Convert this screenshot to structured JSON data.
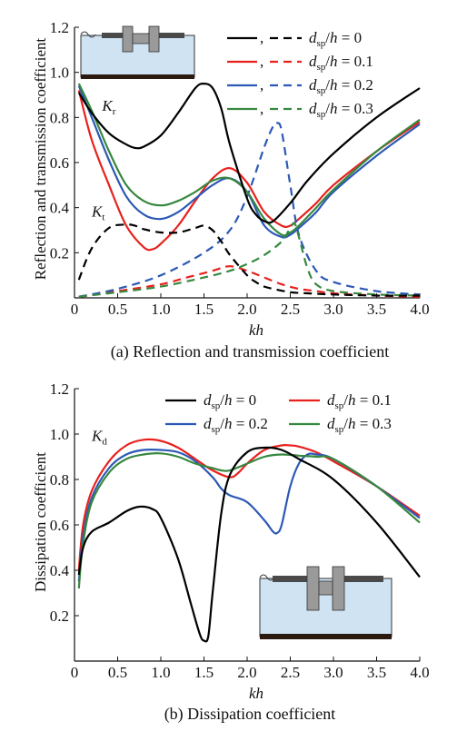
{
  "chart_data": [
    {
      "type": "line",
      "caption": "(a) Reflection and transmission coefficient",
      "xlabel": "kh",
      "ylabel": "Reflection and transmission coefficient",
      "xlim": [
        0,
        4.0
      ],
      "ylim": [
        0,
        1.2
      ],
      "xticks": [
        "0",
        "0.5",
        "1.0",
        "1.5",
        "2.0",
        "2.5",
        "3.0",
        "3.5",
        "4.0"
      ],
      "yticks": [
        "0.2",
        "0.4",
        "0.6",
        "0.8",
        "1.0",
        "1.2"
      ],
      "legend_position": "top-right",
      "annotations": [
        {
          "base": "K",
          "sub": "r",
          "x": 0.32,
          "y": 0.83
        },
        {
          "base": "K",
          "sub": "t",
          "x": 0.2,
          "y": 0.36
        }
      ],
      "series": [
        {
          "name_base": "d",
          "name_sub": "sp",
          "name_rest": "/h = 0",
          "color": "#000000",
          "x": [
            0.05,
            0.2,
            0.4,
            0.6,
            0.7,
            0.8,
            1.0,
            1.2,
            1.4,
            1.5,
            1.6,
            1.7,
            1.8,
            2.0,
            2.1,
            2.2,
            2.3,
            2.5,
            2.7,
            3.0,
            3.5,
            4.0
          ],
          "kr": [
            0.91,
            0.82,
            0.73,
            0.68,
            0.665,
            0.67,
            0.72,
            0.82,
            0.93,
            0.95,
            0.93,
            0.84,
            0.68,
            0.44,
            0.37,
            0.34,
            0.34,
            0.42,
            0.52,
            0.64,
            0.8,
            0.93
          ],
          "kt": [
            0.08,
            0.22,
            0.31,
            0.325,
            0.32,
            0.305,
            0.29,
            0.29,
            0.31,
            0.32,
            0.3,
            0.25,
            0.19,
            0.1,
            0.07,
            0.05,
            0.04,
            0.025,
            0.02,
            0.015,
            0.01,
            0.01
          ]
        },
        {
          "name_base": "d",
          "name_sub": "sp",
          "name_rest": "/h = 0.1",
          "color": "#e8211d",
          "x": [
            0.05,
            0.2,
            0.4,
            0.6,
            0.8,
            0.9,
            1.0,
            1.2,
            1.4,
            1.6,
            1.8,
            2.0,
            2.2,
            2.4,
            2.5,
            2.6,
            2.8,
            3.0,
            3.5,
            4.0
          ],
          "kr": [
            0.92,
            0.7,
            0.5,
            0.32,
            0.225,
            0.215,
            0.24,
            0.32,
            0.43,
            0.53,
            0.575,
            0.51,
            0.38,
            0.32,
            0.32,
            0.35,
            0.42,
            0.5,
            0.65,
            0.78
          ],
          "kt_x": [
            0.05,
            0.5,
            1.0,
            1.3,
            1.6,
            1.8,
            2.0,
            2.2,
            2.4,
            2.6,
            2.8,
            3.0,
            3.5,
            4.0
          ],
          "kt": [
            0.005,
            0.03,
            0.06,
            0.09,
            0.12,
            0.14,
            0.12,
            0.09,
            0.06,
            0.04,
            0.03,
            0.02,
            0.01,
            0.005
          ]
        },
        {
          "name_base": "d",
          "name_sub": "sp",
          "name_rest": "/h = 0.2",
          "color": "#2c59b5",
          "x": [
            0.05,
            0.2,
            0.4,
            0.6,
            0.8,
            1.0,
            1.2,
            1.4,
            1.6,
            1.8,
            2.0,
            2.2,
            2.4,
            2.5,
            2.6,
            2.8,
            3.0,
            3.5,
            4.0
          ],
          "kr": [
            0.94,
            0.8,
            0.61,
            0.45,
            0.37,
            0.35,
            0.38,
            0.44,
            0.5,
            0.53,
            0.47,
            0.32,
            0.27,
            0.28,
            0.31,
            0.38,
            0.47,
            0.63,
            0.77
          ],
          "kt_x": [
            0.05,
            0.5,
            1.0,
            1.5,
            1.8,
            2.0,
            2.2,
            2.3,
            2.35,
            2.4,
            2.5,
            2.6,
            2.8,
            3.0,
            3.5,
            4.0
          ],
          "kt": [
            0.005,
            0.04,
            0.1,
            0.2,
            0.3,
            0.45,
            0.67,
            0.76,
            0.775,
            0.74,
            0.5,
            0.28,
            0.12,
            0.07,
            0.03,
            0.015
          ]
        },
        {
          "name_base": "d",
          "name_sub": "sp",
          "name_rest": "/h = 0.3",
          "color": "#37883f",
          "x": [
            0.05,
            0.2,
            0.4,
            0.6,
            0.8,
            1.0,
            1.2,
            1.4,
            1.6,
            1.8,
            2.0,
            2.2,
            2.4,
            2.5,
            2.6,
            2.8,
            3.0,
            3.5,
            4.0
          ],
          "kr": [
            0.95,
            0.83,
            0.65,
            0.5,
            0.43,
            0.41,
            0.43,
            0.47,
            0.52,
            0.53,
            0.47,
            0.35,
            0.28,
            0.29,
            0.32,
            0.4,
            0.48,
            0.65,
            0.79
          ],
          "kt_x": [
            0.05,
            0.5,
            1.0,
            1.5,
            1.8,
            2.0,
            2.2,
            2.4,
            2.5,
            2.55,
            2.6,
            2.7,
            2.8,
            3.0,
            3.5,
            4.0
          ],
          "kt": [
            0.005,
            0.025,
            0.05,
            0.09,
            0.12,
            0.15,
            0.19,
            0.25,
            0.31,
            0.33,
            0.27,
            0.13,
            0.06,
            0.03,
            0.015,
            0.01
          ]
        }
      ]
    },
    {
      "type": "line",
      "caption": "(b) Dissipation coefficient",
      "xlabel": "kh",
      "ylabel": "Dissipation coefficient",
      "xlim": [
        0,
        4.0
      ],
      "ylim": [
        0,
        1.2
      ],
      "xticks": [
        "0",
        "0.5",
        "1.0",
        "1.5",
        "2.0",
        "2.5",
        "3.0",
        "3.5",
        "4.0"
      ],
      "yticks": [
        "0.2",
        "0.4",
        "0.6",
        "0.8",
        "1.0",
        "1.2"
      ],
      "legend_position": "top",
      "annotations": [
        {
          "base": "K",
          "sub": "d",
          "x": 0.2,
          "y": 0.97
        }
      ],
      "series": [
        {
          "name_base": "d",
          "name_sub": "sp",
          "name_rest": "/h = 0",
          "color": "#000000",
          "x": [
            0.05,
            0.1,
            0.2,
            0.4,
            0.6,
            0.75,
            0.9,
            1.0,
            1.2,
            1.35,
            1.45,
            1.5,
            1.55,
            1.6,
            1.7,
            1.8,
            2.0,
            2.2,
            2.4,
            2.6,
            3.0,
            3.5,
            4.0
          ],
          "y": [
            0.38,
            0.5,
            0.57,
            0.61,
            0.66,
            0.68,
            0.67,
            0.63,
            0.45,
            0.25,
            0.12,
            0.09,
            0.11,
            0.3,
            0.65,
            0.82,
            0.92,
            0.94,
            0.93,
            0.89,
            0.8,
            0.61,
            0.37
          ]
        },
        {
          "name_base": "d",
          "name_sub": "sp",
          "name_rest": "/h = 0.1",
          "color": "#e8211d",
          "x": [
            0.05,
            0.1,
            0.2,
            0.4,
            0.6,
            0.8,
            1.0,
            1.2,
            1.4,
            1.6,
            1.8,
            1.9,
            2.0,
            2.2,
            2.4,
            2.5,
            2.6,
            2.8,
            3.0,
            3.5,
            4.0
          ],
          "y": [
            0.4,
            0.6,
            0.75,
            0.88,
            0.95,
            0.975,
            0.97,
            0.94,
            0.89,
            0.84,
            0.81,
            0.83,
            0.87,
            0.93,
            0.95,
            0.95,
            0.945,
            0.92,
            0.88,
            0.77,
            0.64
          ]
        },
        {
          "name_base": "d",
          "name_sub": "sp",
          "name_rest": "/h = 0.2",
          "color": "#2c59b5",
          "x": [
            0.05,
            0.1,
            0.2,
            0.4,
            0.6,
            0.8,
            1.0,
            1.2,
            1.4,
            1.6,
            1.7,
            1.8,
            2.0,
            2.2,
            2.3,
            2.35,
            2.4,
            2.5,
            2.6,
            2.7,
            2.8,
            3.0,
            3.5,
            4.0
          ],
          "y": [
            0.35,
            0.55,
            0.72,
            0.85,
            0.91,
            0.93,
            0.93,
            0.92,
            0.88,
            0.81,
            0.76,
            0.73,
            0.7,
            0.62,
            0.57,
            0.565,
            0.6,
            0.77,
            0.87,
            0.91,
            0.91,
            0.89,
            0.77,
            0.63
          ]
        },
        {
          "name_base": "d",
          "name_sub": "sp",
          "name_rest": "/h = 0.3",
          "color": "#37883f",
          "x": [
            0.05,
            0.1,
            0.2,
            0.4,
            0.6,
            0.8,
            1.0,
            1.2,
            1.4,
            1.6,
            1.7,
            1.8,
            2.0,
            2.2,
            2.4,
            2.6,
            2.8,
            3.0,
            3.5,
            4.0
          ],
          "y": [
            0.32,
            0.52,
            0.7,
            0.83,
            0.89,
            0.91,
            0.915,
            0.9,
            0.87,
            0.85,
            0.84,
            0.84,
            0.87,
            0.9,
            0.91,
            0.905,
            0.9,
            0.89,
            0.77,
            0.61
          ]
        }
      ]
    }
  ],
  "legend_separator": ","
}
